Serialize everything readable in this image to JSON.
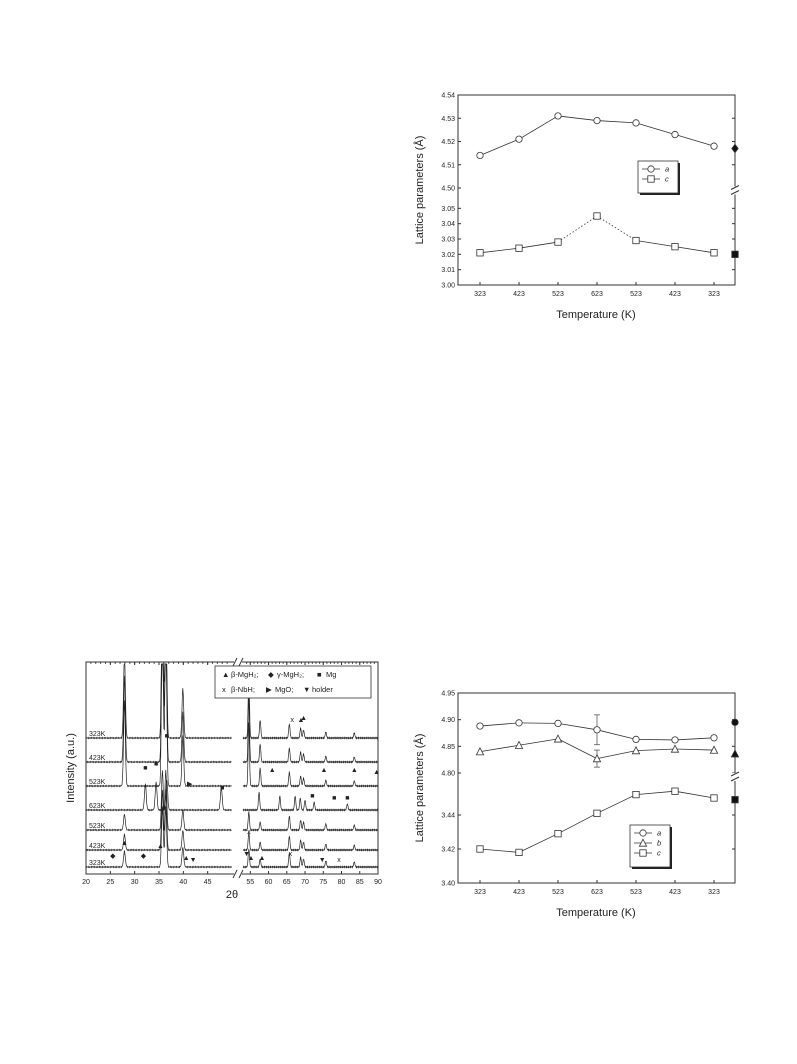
{
  "chart_data": [
    {
      "id": "top-right",
      "type": "line",
      "title": "",
      "xlabel": "Temperature (K)",
      "ylabel": "Lattice parameters (Å)",
      "categories": [
        "323",
        "423",
        "523",
        "623",
        "523",
        "423",
        "323"
      ],
      "axis_break": true,
      "upper_ylim": [
        4.5,
        4.54
      ],
      "upper_yticks": [
        "4.50",
        "4.51",
        "4.52",
        "4.53",
        "4.54"
      ],
      "lower_ylim": [
        3.0,
        3.06
      ],
      "lower_yticks": [
        "3.00",
        "3.01",
        "3.02",
        "3.03",
        "3.04",
        "3.05"
      ],
      "series": [
        {
          "name": "a",
          "marker": "circle",
          "panel": "upper",
          "values": [
            4.514,
            4.521,
            4.531,
            4.529,
            4.528,
            4.523,
            4.518
          ],
          "dotted_segments": []
        },
        {
          "name": "c",
          "marker": "square",
          "panel": "lower",
          "values": [
            3.021,
            3.024,
            3.028,
            3.045,
            3.029,
            3.025,
            3.021
          ],
          "dotted_segments": [
            2,
            3
          ]
        }
      ],
      "reference_markers": [
        {
          "shape": "diamond",
          "panel": "upper",
          "value": 4.517
        },
        {
          "shape": "square",
          "panel": "lower",
          "value": 3.02
        }
      ],
      "legend_position": "right"
    },
    {
      "id": "bottom-left",
      "type": "line",
      "title": "",
      "xlabel": "2θ",
      "ylabel": "Intensity (a.u.)",
      "x_ticks_left": [
        "20",
        "25",
        "30",
        "35",
        "40",
        "45"
      ],
      "x_ticks_right": [
        "55",
        "60",
        "65",
        "70",
        "75",
        "80",
        "85",
        "90"
      ],
      "xlim_left": [
        20,
        50
      ],
      "xlim_right": [
        53,
        90
      ],
      "axis_break": true,
      "traces": [
        {
          "name": "323K"
        },
        {
          "name": "423K"
        },
        {
          "name": "523K"
        },
        {
          "name": "623K"
        },
        {
          "name": "523K"
        },
        {
          "name": "423K"
        },
        {
          "name": "323K"
        }
      ],
      "legend": [
        {
          "symbol": "▲",
          "label": "β-MgH₂;"
        },
        {
          "symbol": "◆",
          "label": "γ-MgH₂;"
        },
        {
          "symbol": "■",
          "label": "Mg"
        },
        {
          "symbol": "x",
          "label": "β-NbH;"
        },
        {
          "symbol": "▶",
          "label": "MgO;"
        },
        {
          "symbol": "▼",
          "label": "holder"
        }
      ],
      "legend_position": "top-right"
    },
    {
      "id": "bottom-right",
      "type": "line",
      "title": "",
      "xlabel": "Temperature (K)",
      "ylabel": "Lattice parameters (Å)",
      "categories": [
        "323",
        "423",
        "523",
        "623",
        "523",
        "423",
        "323"
      ],
      "axis_break": true,
      "upper_ylim": [
        4.8,
        4.95
      ],
      "upper_yticks": [
        "4.80",
        "4.85",
        "4.90",
        "4.95"
      ],
      "lower_ylim": [
        3.4,
        3.46
      ],
      "lower_yticks": [
        "3.40",
        "3.42",
        "3.44"
      ],
      "series": [
        {
          "name": "a",
          "marker": "circle",
          "panel": "upper",
          "values": [
            4.888,
            4.894,
            4.893,
            4.881,
            4.863,
            4.862,
            4.866
          ],
          "error": [
            0,
            0,
            0,
            0.028,
            0,
            0,
            0
          ]
        },
        {
          "name": "b",
          "marker": "triangle",
          "panel": "upper",
          "values": [
            4.84,
            4.852,
            4.864,
            4.827,
            4.842,
            4.845,
            4.843
          ],
          "error": [
            0,
            0,
            0,
            0.016,
            0,
            0,
            0
          ]
        },
        {
          "name": "c",
          "marker": "square",
          "panel": "lower",
          "values": [
            3.42,
            3.418,
            3.429,
            3.441,
            3.452,
            3.454,
            3.45
          ],
          "error": [
            0,
            0,
            0,
            0,
            0,
            0,
            0
          ]
        }
      ],
      "reference_markers": [
        {
          "shape": "circle-filled",
          "panel": "upper",
          "value": 4.895
        },
        {
          "shape": "triangle",
          "panel": "upper",
          "value": 4.836
        },
        {
          "shape": "square",
          "panel": "lower",
          "value": 3.449
        }
      ],
      "legend_position": "bottom-right"
    }
  ]
}
